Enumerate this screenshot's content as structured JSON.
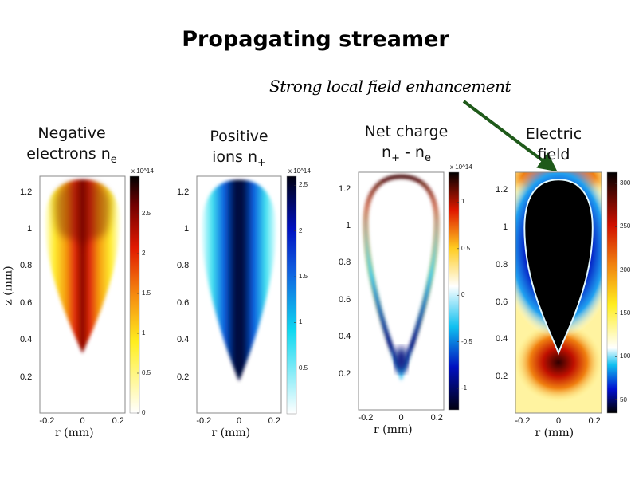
{
  "title": "Propagating streamer",
  "annotation": "Strong local field enhancement",
  "panel_titles": [
    {
      "line1": "Negative",
      "line2": "electrons n",
      "sub": "e"
    },
    {
      "line1": "Positive",
      "line2": "ions n",
      "sub": "+"
    },
    {
      "line1": "Net charge",
      "line2": "n",
      "sub": "+",
      "rest": " - n",
      "sub2": "e"
    },
    {
      "line1": "Electric",
      "line2": "field"
    }
  ],
  "colors": {
    "arrow": "#1f5a1a"
  },
  "chart_data": [
    {
      "type": "heatmap",
      "title": "Negative electrons n_e",
      "xlabel": "r (mm)",
      "ylabel": "z (mm)",
      "xlim": [
        -0.24,
        0.24
      ],
      "ylim": [
        0,
        1.3
      ],
      "xticks": [
        "-0.2",
        "0",
        "0.2"
      ],
      "yticks": [
        "0.2",
        "0.4",
        "0.6",
        "0.8",
        "1",
        "1.2"
      ],
      "colormap": "hot (reversed)",
      "colorbar": {
        "range": [
          0,
          2.97
        ],
        "ticks": [
          "0",
          "0.5",
          "1",
          "1.5",
          "2",
          "2.5"
        ],
        "multiplier": "x 10^14"
      }
    },
    {
      "type": "heatmap",
      "title": "Positive ions n_+",
      "xlabel": "r (mm)",
      "ylabel": "",
      "xlim": [
        -0.24,
        0.24
      ],
      "ylim": [
        0,
        1.3
      ],
      "xticks": [
        "-0.2",
        "0",
        "0.2"
      ],
      "yticks": [
        "0.2",
        "0.4",
        "0.6",
        "0.8",
        "1",
        "1.2"
      ],
      "colormap": "white-cyan-blue-black",
      "colorbar": {
        "range": [
          0,
          2.6
        ],
        "ticks": [
          "0.5",
          "1",
          "1.5",
          "2",
          "2.5"
        ],
        "multiplier": "x 10^14"
      }
    },
    {
      "type": "heatmap",
      "title": "Net charge n_+ - n_e",
      "xlabel": "r (mm)",
      "ylabel": "",
      "xlim": [
        -0.24,
        0.24
      ],
      "ylim": [
        0,
        1.3
      ],
      "xticks": [
        "-0.2",
        "0",
        "0.2"
      ],
      "yticks": [
        "0.2",
        "0.4",
        "0.6",
        "0.8",
        "1",
        "1.2"
      ],
      "colormap": "diverging blue-white-red",
      "colorbar": {
        "range": [
          -1.23,
          1.32
        ],
        "ticks": [
          "-1",
          "-0.5",
          "0",
          "0.5",
          "1"
        ],
        "multiplier": "x 10^14"
      }
    },
    {
      "type": "heatmap",
      "title": "Electric field",
      "xlabel": "r (mm)",
      "ylabel": "",
      "xlim": [
        -0.24,
        0.24
      ],
      "ylim": [
        0,
        1.3
      ],
      "xticks": [
        "-0.2",
        "0",
        "0.2"
      ],
      "yticks": [
        "0.2",
        "0.4",
        "0.6",
        "0.8",
        "1",
        "1.2"
      ],
      "colormap": "black-blue-cyan-white-yellow-red-black",
      "colorbar": {
        "range": [
          35,
          313
        ],
        "ticks": [
          "50",
          "100",
          "150",
          "200",
          "250",
          "300"
        ],
        "multiplier": ""
      }
    }
  ]
}
